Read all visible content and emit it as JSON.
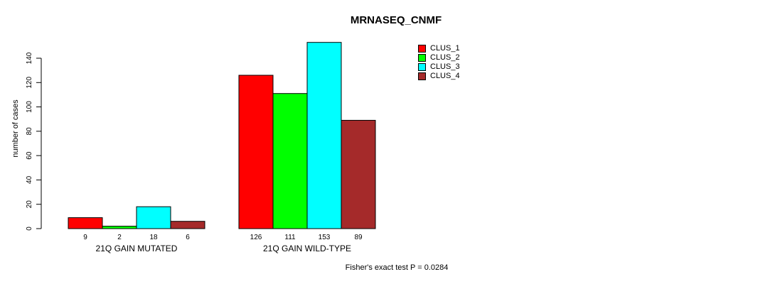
{
  "page": {
    "background": "#FFFFFF"
  },
  "chart_data": {
    "type": "bar",
    "title": "MRNASEQ_CNMF",
    "xlabel": "",
    "ylabel": "number of cases",
    "ylim": [
      0,
      140
    ],
    "yticks": [
      0,
      20,
      40,
      60,
      80,
      100,
      120,
      140
    ],
    "categories": [
      "21Q GAIN MUTATED",
      "21Q GAIN WILD-TYPE"
    ],
    "series": [
      {
        "name": "CLUS_1",
        "color": "#FF0000",
        "values": [
          9,
          126
        ]
      },
      {
        "name": "CLUS_2",
        "color": "#00FF00",
        "values": [
          2,
          111
        ]
      },
      {
        "name": "CLUS_3",
        "color": "#00FFFF",
        "values": [
          18,
          153
        ]
      },
      {
        "name": "CLUS_4",
        "color": "#A52A2A",
        "values": [
          6,
          89
        ]
      }
    ],
    "show_bar_values": true,
    "bar_border_color": "#000000",
    "grid": false,
    "legend_position": "top-right",
    "annotation": "Fisher's exact test P = 0.0284"
  }
}
